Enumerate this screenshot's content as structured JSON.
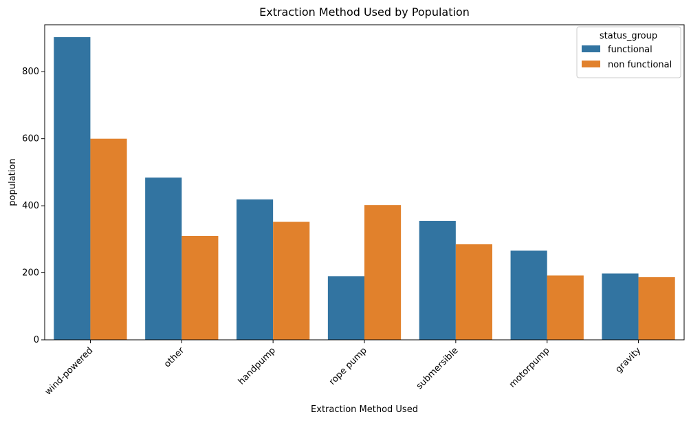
{
  "chart_data": {
    "type": "bar",
    "title": "Extraction Method Used by Population",
    "xlabel": "Extraction Method Used",
    "ylabel": "population",
    "categories": [
      "wind-powered",
      "other",
      "handpump",
      "rope pump",
      "submersible",
      "motorpump",
      "gravity"
    ],
    "series": [
      {
        "name": "functional",
        "color": "#3274a1",
        "values": [
          903,
          484,
          419,
          190,
          355,
          266,
          198
        ]
      },
      {
        "name": "non functional",
        "color": "#e1812c",
        "values": [
          600,
          310,
          352,
          402,
          285,
          192,
          187
        ]
      }
    ],
    "ylim": [
      0,
      940
    ],
    "yticks": [
      0,
      200,
      400,
      600,
      800
    ],
    "legend": {
      "title": "status_group",
      "placement": "top-right"
    },
    "grid": false
  }
}
